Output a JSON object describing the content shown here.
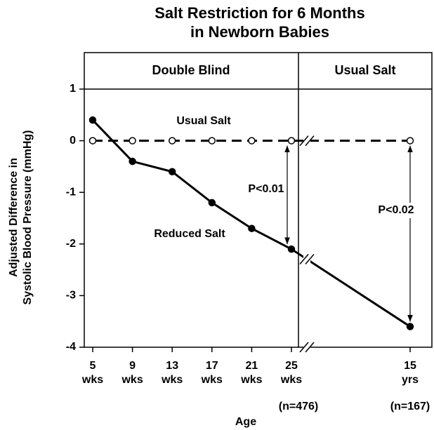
{
  "chart_data": {
    "type": "line",
    "title": [
      "Salt Restriction for 6 Months",
      "in Newborn Babies"
    ],
    "sections": [
      "Double Blind",
      "Usual Salt"
    ],
    "y_label": [
      "Adjusted Difference in",
      "Systolic Blood Pressure (mmHg)"
    ],
    "x_label": "Age",
    "categories": [
      "5 wks",
      "9 wks",
      "13 wks",
      "17 wks",
      "21 wks",
      "25 wks",
      "15 yrs"
    ],
    "series": [
      {
        "name": "Usual Salt",
        "color": "#000000",
        "marker": "open",
        "dashed": true,
        "values": [
          0,
          0,
          0,
          0,
          0,
          0,
          0
        ]
      },
      {
        "name": "Reduced Salt",
        "color": "#000000",
        "marker": "filled",
        "dashed": false,
        "values": [
          0.4,
          -0.4,
          -0.6,
          -1.2,
          -1.7,
          -2.1,
          -3.6
        ]
      }
    ],
    "sample_sizes": [
      {
        "text": "(n=476)",
        "category": 5
      },
      {
        "text": "(n=167)",
        "category": 6
      }
    ],
    "comparisons": [
      {
        "text": "P<0.01",
        "category": 5
      },
      {
        "text": "P<0.02",
        "category": 6
      }
    ],
    "ylim": [
      -4,
      1
    ],
    "yticks": [
      -4,
      -3,
      -2,
      -1,
      0,
      1
    ]
  }
}
